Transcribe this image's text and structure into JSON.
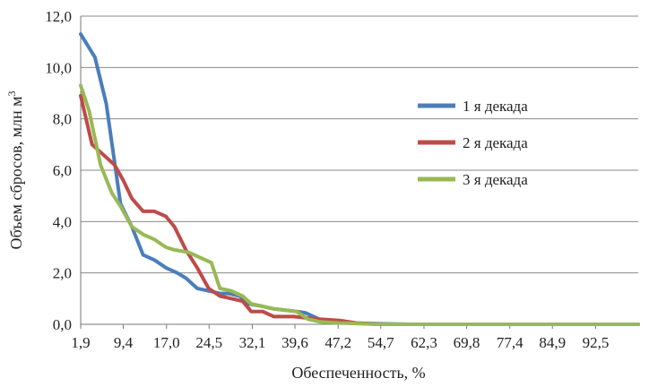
{
  "chart_data": {
    "type": "line",
    "title": "",
    "xlabel": "Обеспеченность, %",
    "ylabel": "Объем сбросов, млн м",
    "ylabel_superscript": "3",
    "ylim": [
      0,
      12
    ],
    "xlim": [
      1.9,
      100
    ],
    "y_ticks": [
      "0,0",
      "2,0",
      "4,0",
      "6,0",
      "8,0",
      "10,0",
      "12,0"
    ],
    "x_ticks": [
      "1,9",
      "9,4",
      "17,0",
      "24,5",
      "32,1",
      "39,6",
      "47,2",
      "54,7",
      "62,3",
      "69,8",
      "77,4",
      "84,9",
      "92,5"
    ],
    "x_tick_values": [
      1.9,
      9.4,
      17.0,
      24.5,
      32.1,
      39.6,
      47.2,
      54.7,
      62.3,
      69.8,
      77.4,
      84.9,
      92.5
    ],
    "grid": true,
    "legend_position": "right",
    "series": [
      {
        "name": "1 я декада",
        "color": "#4a7ebb",
        "x": [
          1.9,
          4.4,
          6.4,
          8.9,
          10.9,
          12.9,
          14.9,
          16.9,
          18.9,
          20.4,
          22.4,
          24.4,
          26.4,
          27.9,
          29.9,
          31.4,
          33.9,
          35.9,
          37.9,
          39.9,
          41.4,
          43.9,
          47.4,
          50.4,
          54.4,
          60,
          70,
          80,
          90,
          100
        ],
        "values": [
          11.3,
          10.4,
          8.6,
          4.7,
          3.8,
          2.7,
          2.5,
          2.2,
          2.0,
          1.8,
          1.4,
          1.3,
          1.2,
          1.2,
          1.1,
          0.8,
          0.7,
          0.6,
          0.55,
          0.5,
          0.45,
          0.2,
          0.1,
          0.05,
          0.02,
          0.0,
          0.0,
          0.0,
          0.0,
          0.0
        ]
      },
      {
        "name": "2 я декада",
        "color": "#be4b48",
        "x": [
          1.9,
          3.9,
          5.9,
          7.9,
          9.4,
          10.9,
          12.9,
          14.9,
          16.9,
          18.4,
          20.4,
          22.4,
          24.4,
          26.4,
          28.4,
          30.4,
          31.9,
          33.9,
          35.9,
          37.4,
          39.4,
          41.4,
          43.9,
          47.4,
          50.4,
          54.4,
          60,
          70,
          80,
          90,
          100
        ],
        "values": [
          8.9,
          7.0,
          6.6,
          6.2,
          5.6,
          4.9,
          4.4,
          4.4,
          4.2,
          3.8,
          2.9,
          2.2,
          1.4,
          1.1,
          1.0,
          0.9,
          0.5,
          0.5,
          0.3,
          0.3,
          0.3,
          0.25,
          0.2,
          0.15,
          0.05,
          0.0,
          0.0,
          0.0,
          0.0,
          0.0,
          0.0
        ]
      },
      {
        "name": "3 я декада",
        "color": "#98b954",
        "x": [
          1.9,
          3.4,
          5.4,
          7.4,
          8.9,
          10.9,
          12.9,
          14.9,
          16.9,
          18.4,
          20.9,
          22.9,
          24.9,
          26.4,
          28.4,
          30.4,
          31.9,
          33.9,
          35.9,
          37.9,
          39.9,
          41.9,
          43.9,
          47.4,
          50.4,
          54.4,
          60,
          70,
          80,
          90,
          100
        ],
        "values": [
          9.3,
          8.3,
          6.2,
          5.1,
          4.6,
          3.8,
          3.5,
          3.3,
          3.0,
          2.9,
          2.8,
          2.6,
          2.4,
          1.4,
          1.3,
          1.1,
          0.8,
          0.7,
          0.6,
          0.55,
          0.5,
          0.2,
          0.1,
          0.05,
          0.03,
          0.0,
          0.0,
          0.0,
          0.0,
          0.0,
          0.0
        ]
      }
    ]
  }
}
